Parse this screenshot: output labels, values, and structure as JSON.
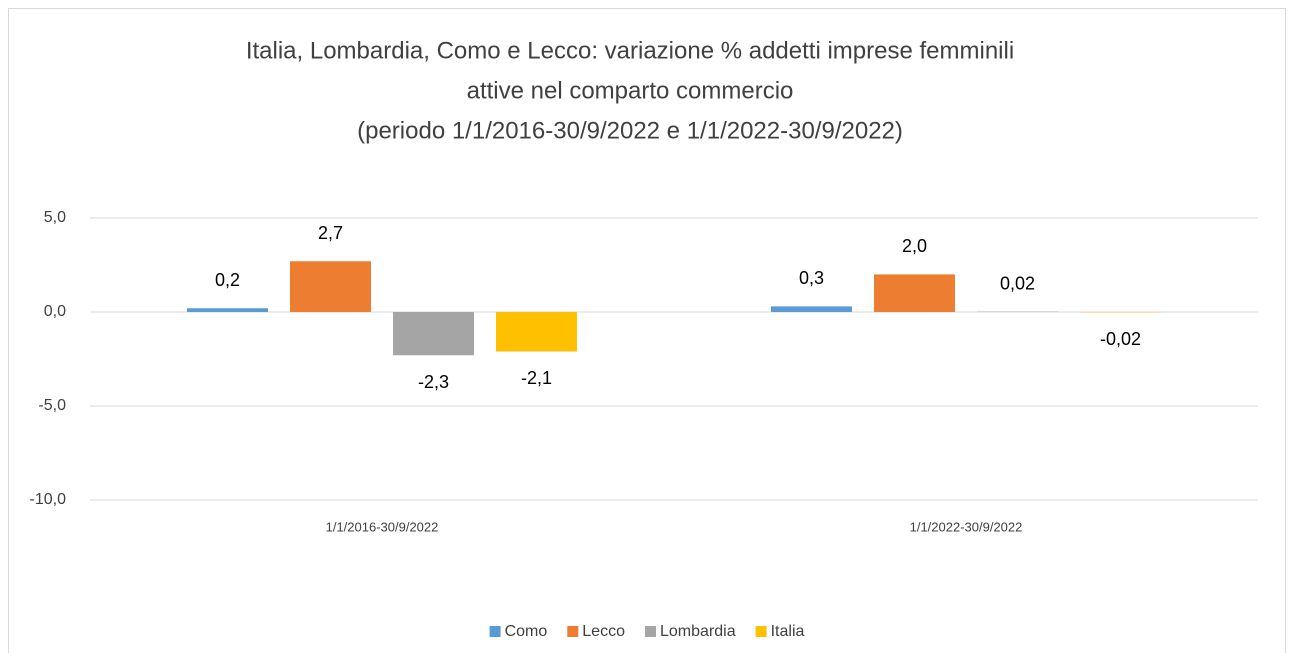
{
  "chart_data": {
    "type": "bar",
    "title": [
      "Italia, Lombardia, Como e Lecco: variazione % addetti  imprese femminili",
      "attive nel comparto commercio",
      "(periodo 1/1/2016-30/9/2022 e 1/1/2022-30/9/2022)"
    ],
    "categories": [
      "1/1/2016-30/9/2022",
      "1/1/2022-30/9/2022"
    ],
    "series": [
      {
        "name": "Como",
        "color": "#5b9bd5",
        "values": [
          0.2,
          0.3
        ],
        "value_labels": [
          "0,2",
          "0,3"
        ]
      },
      {
        "name": "Lecco",
        "color": "#ed7d31",
        "values": [
          2.7,
          2.0
        ],
        "value_labels": [
          "2,7",
          "2,0"
        ]
      },
      {
        "name": "Lombardia",
        "color": "#a5a5a5",
        "values": [
          -2.3,
          0.02
        ],
        "value_labels": [
          "-2,3",
          "0,02"
        ]
      },
      {
        "name": "Italia",
        "color": "#ffc000",
        "values": [
          -2.1,
          -0.02
        ],
        "value_labels": [
          "-2,1",
          "-0,02"
        ]
      }
    ],
    "ylim": [
      -10,
      5
    ],
    "yticks": [
      {
        "value": 5,
        "label": "5,0"
      },
      {
        "value": 0,
        "label": "0,0"
      },
      {
        "value": -5,
        "label": "-5,0"
      },
      {
        "value": -10,
        "label": "-10,0"
      }
    ],
    "grid": true,
    "legend": "bottom"
  }
}
